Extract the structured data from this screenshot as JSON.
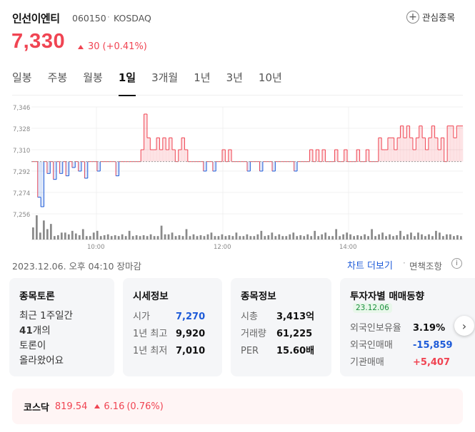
{
  "header": {
    "name": "인선이엔티",
    "code": "060150",
    "separator": "·",
    "market": "KOSDAQ",
    "favorite_label": "관심종목"
  },
  "quote": {
    "price": "7,330",
    "change": "30",
    "change_pct": "(+0.41%)",
    "color_up": "#f04452",
    "color_down": "#1e5bd8"
  },
  "tabs": [
    {
      "label": "일봉"
    },
    {
      "label": "주봉"
    },
    {
      "label": "월봉"
    },
    {
      "label": "1일",
      "active": true
    },
    {
      "label": "3개월"
    },
    {
      "label": "1년"
    },
    {
      "label": "3년"
    },
    {
      "label": "10년"
    }
  ],
  "chart_data": {
    "type": "line",
    "y_ticks": [
      "7,346",
      "7,328",
      "7,310",
      "7,292",
      "7,274",
      "7,256"
    ],
    "ylim": [
      7256,
      7346
    ],
    "x_ticks": [
      "10:00",
      "12:00",
      "14:00"
    ],
    "base_price": 7300,
    "series": [
      {
        "values": [
          7300,
          7300,
          7270,
          7262,
          7300,
          7290,
          7300,
          7285,
          7300,
          7290,
          7300,
          7288,
          7300,
          7295,
          7300,
          7292,
          7300,
          7286,
          7300,
          7300,
          7300,
          7292,
          7300,
          7300,
          7300,
          7300,
          7300,
          7288,
          7300,
          7300,
          7300,
          7300,
          7300,
          7300,
          7300,
          7310,
          7340,
          7320,
          7310,
          7310,
          7320,
          7310,
          7320,
          7310,
          7320,
          7310,
          7300,
          7310,
          7320,
          7310,
          7300,
          7300,
          7300,
          7300,
          7300,
          7292,
          7300,
          7300,
          7292,
          7300,
          7300,
          7310,
          7300,
          7310,
          7300,
          7300,
          7300,
          7300,
          7300,
          7292,
          7300,
          7300,
          7300,
          7292,
          7300,
          7300,
          7300,
          7292,
          7300,
          7300,
          7300,
          7300,
          7300,
          7300,
          7292,
          7300,
          7300,
          7300,
          7300,
          7310,
          7300,
          7310,
          7300,
          7310,
          7300,
          7300,
          7300,
          7310,
          7300,
          7300,
          7310,
          7300,
          7300,
          7300,
          7310,
          7300,
          7300,
          7310,
          7300,
          7300,
          7300,
          7320,
          7310,
          7310,
          7320,
          7320,
          7310,
          7320,
          7330,
          7320,
          7330,
          7320,
          7310,
          7320,
          7330,
          7320,
          7310,
          7320,
          7330,
          7320,
          7310,
          7320,
          7300,
          7330,
          7330,
          7320,
          7330,
          7330,
          7330
        ]
      }
    ],
    "volume": [
      14,
      28,
      8,
      22,
      12,
      18,
      4,
      5,
      8,
      8,
      6,
      10,
      7,
      5,
      12,
      4,
      4,
      8,
      10,
      4,
      5,
      6,
      4,
      5,
      4,
      6,
      4,
      10,
      4,
      5,
      4,
      5,
      4,
      6,
      4,
      4,
      16,
      6,
      6,
      8,
      4,
      5,
      4,
      12,
      4,
      6,
      4,
      5,
      4,
      6,
      8,
      4,
      4,
      6,
      4,
      5,
      4,
      8,
      4,
      4,
      6,
      4,
      4,
      6,
      10,
      4,
      5,
      8,
      4,
      6,
      4,
      4,
      6,
      8,
      4,
      5,
      4,
      6,
      4,
      10,
      4,
      6,
      8,
      4,
      4,
      12,
      4,
      6,
      8,
      6,
      4,
      5,
      4,
      6,
      4,
      12,
      4,
      6,
      8,
      4,
      6,
      4,
      5,
      10,
      4,
      6,
      8,
      4,
      8,
      6,
      4,
      6,
      4,
      10,
      8,
      4,
      6,
      6,
      4,
      5,
      4
    ]
  },
  "footer": {
    "datetime": "2023.12.06. 오후 04:10 장마감",
    "more_chart": "차트 더보기",
    "dot": "·",
    "disclaimer": "면책조항",
    "info": "i"
  },
  "cards": {
    "discussion": {
      "title": "종목토론",
      "line1": "최근 1주일간",
      "count": "41",
      "line2": "개의",
      "line3": "토론이",
      "line4": "올라왔어요"
    },
    "market_info": {
      "title": "시세정보",
      "open_label": "시가",
      "open_value": "7,270",
      "high_label": "1년 최고",
      "high_value": "9,920",
      "low_label": "1년 최저",
      "low_value": "7,010"
    },
    "stock_info": {
      "title": "종목정보",
      "cap_label": "시총",
      "cap_value": "3,413억",
      "vol_label": "거래량",
      "vol_value": "61,225",
      "per_label": "PER",
      "per_value": "15.60배"
    },
    "investor": {
      "title": "투자자별 매매동향",
      "badge": "23.12.06",
      "foreign_ratio_label": "외국인보유율",
      "foreign_ratio_value": "3.19%",
      "foreign_trade_label": "외국인매매",
      "foreign_trade_value": "-15,859",
      "inst_label": "기관매매",
      "inst_value": "+5,407"
    },
    "next_icon": "›"
  },
  "index": {
    "name": "코스닥",
    "value": "819.54",
    "change": "6.16",
    "pct": "(0.76%)"
  }
}
